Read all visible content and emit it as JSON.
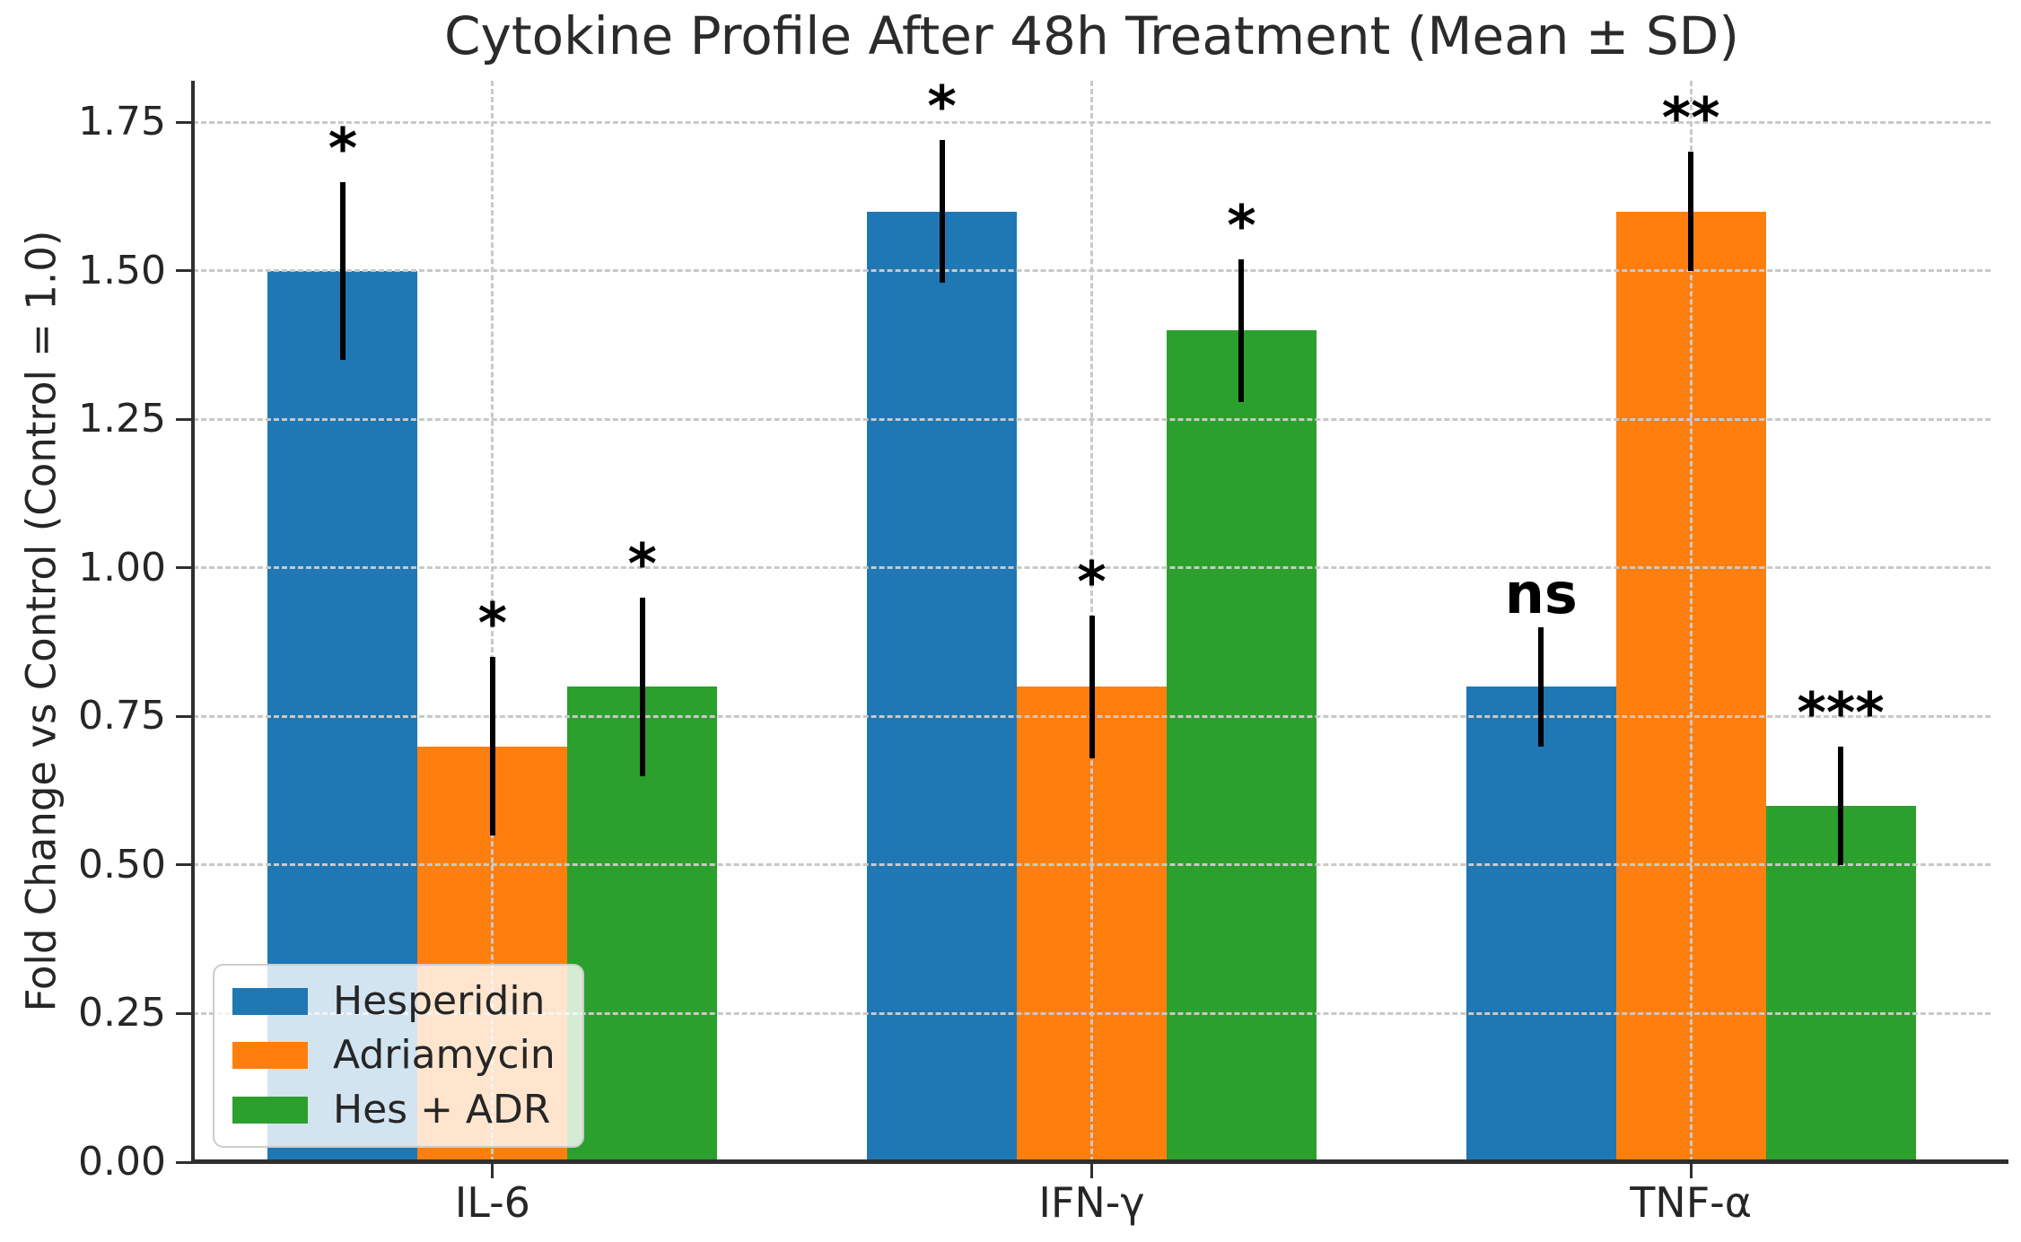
{
  "chart_data": {
    "type": "bar",
    "title": "Cytokine Profile After 48h Treatment (Mean ± SD)",
    "ylabel": "Fold Change vs Control (Control = 1.0)",
    "xlabel": "",
    "categories": [
      "IL-6",
      "IFN-γ",
      "TNF-α"
    ],
    "series": [
      {
        "name": "Hesperidin",
        "color": "#1f77b4",
        "values": [
          1.5,
          1.6,
          0.8
        ],
        "errors": [
          0.15,
          0.12,
          0.1
        ],
        "significance": [
          "*",
          "*",
          "ns"
        ]
      },
      {
        "name": "Adriamycin",
        "color": "#ff7f0e",
        "values": [
          0.7,
          0.8,
          1.6
        ],
        "errors": [
          0.15,
          0.12,
          0.1
        ],
        "significance": [
          "*",
          "*",
          "**"
        ]
      },
      {
        "name": "Hes + ADR",
        "color": "#2ca02c",
        "values": [
          0.8,
          1.4,
          0.6
        ],
        "errors": [
          0.15,
          0.12,
          0.1
        ],
        "significance": [
          "*",
          "*",
          "***"
        ]
      }
    ],
    "ylim": [
      0,
      1.82
    ],
    "yticks": [
      0.0,
      0.25,
      0.5,
      0.75,
      1.0,
      1.25,
      1.5,
      1.75
    ],
    "ytick_labels": [
      "0.00",
      "0.25",
      "0.50",
      "0.75",
      "1.00",
      "1.25",
      "1.50",
      "1.75"
    ],
    "grid": "dashed gray gridlines on both axes, drawn over bars",
    "legend_position": "lower left",
    "error_bar_style": "black vertical lines, no caps"
  },
  "style_colors": {
    "axis": "#2f2f2f",
    "grid": "#c9c9c9",
    "text": "#262626",
    "annotation": "#000000",
    "background": "#ffffff"
  }
}
